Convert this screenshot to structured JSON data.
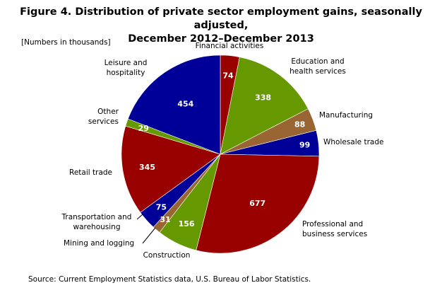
{
  "title_line1": "Figure 4. Distribution of private sector employment gains, seasonally adjusted,",
  "title_line2": "December 2012–December 2013",
  "note": "[Numbers in thousands]",
  "source": "Source: Current Employment Statistics data, U.S. Bureau of Labor Statistics.",
  "chart_data": {
    "type": "pie",
    "title": "Distribution of private sector employment gains, seasonally adjusted, December 2012–December 2013",
    "unit": "Numbers in thousands",
    "start": "12 o'clock",
    "direction": "clockwise",
    "slices": [
      {
        "name": "Financial activities",
        "label_lines": [
          "Financial activities"
        ],
        "value": 74,
        "value_label": "74",
        "color": "#990000"
      },
      {
        "name": "Education and health services",
        "label_lines": [
          "Education and",
          "health services"
        ],
        "value": 338,
        "value_label": "338",
        "color": "#669900"
      },
      {
        "name": "Manufacturing",
        "label_lines": [
          "Manufacturing"
        ],
        "value": 88,
        "value_label": "88",
        "color": "#996633"
      },
      {
        "name": "Wholesale trade",
        "label_lines": [
          "Wholesale trade"
        ],
        "value": 99,
        "value_label": "99",
        "color": "#000099"
      },
      {
        "name": "Professional and business services",
        "label_lines": [
          "Professional and",
          "business services"
        ],
        "value": 677,
        "value_label": "677",
        "color": "#990000"
      },
      {
        "name": "Construction",
        "label_lines": [
          "Construction"
        ],
        "value": 156,
        "value_label": "156",
        "color": "#669900"
      },
      {
        "name": "Mining and logging",
        "label_lines": [
          "Mining and logging"
        ],
        "value": 31,
        "value_label": "31",
        "color": "#996633"
      },
      {
        "name": "Transportation and warehousing",
        "label_lines": [
          "Transportation  and",
          "warehousing"
        ],
        "value": 75,
        "value_label": "75",
        "color": "#000099"
      },
      {
        "name": "Retail trade",
        "label_lines": [
          "Retail trade"
        ],
        "value": 345,
        "value_label": "345",
        "color": "#990000"
      },
      {
        "name": "Other services",
        "label_lines": [
          "Other",
          "services"
        ],
        "value": 29,
        "value_label": "29",
        "color": "#669900"
      },
      {
        "name": "Leisure and hospitality",
        "label_lines": [
          "Leisure and",
          "hospitality"
        ],
        "value": 454,
        "value_label": "454",
        "color": "#000099"
      }
    ]
  }
}
